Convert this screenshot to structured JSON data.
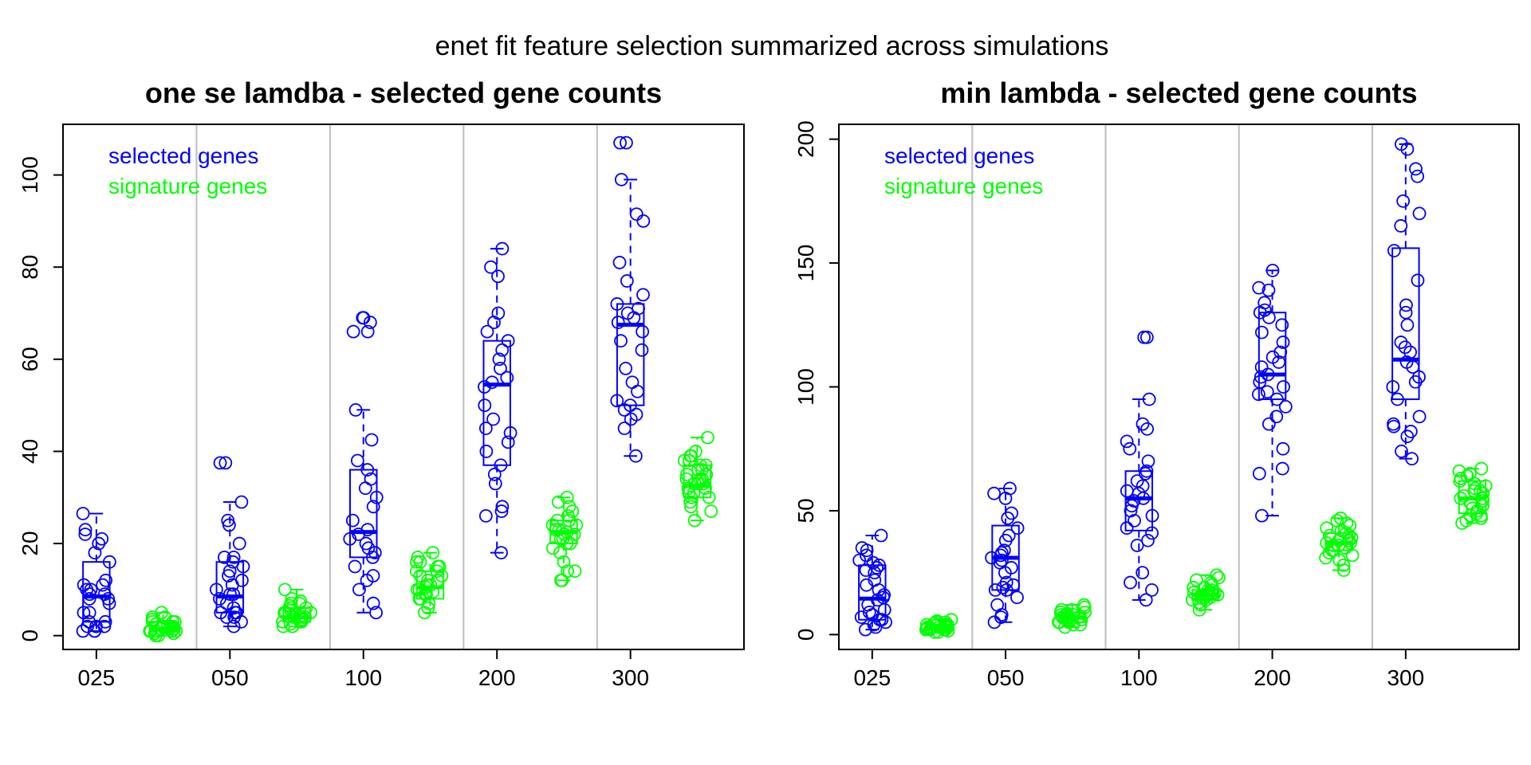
{
  "figure_title": "enet fit feature selection summarized across simulations",
  "colors": {
    "selected": "#0000ff",
    "signature": "#00ff00",
    "separator": "#bebebe",
    "axis": "#000000"
  },
  "chart_data": [
    {
      "type": "box",
      "title": "one se lamdba - selected gene counts",
      "xlabel": "",
      "ylabel": "",
      "categories": [
        "025",
        "050",
        "100",
        "200",
        "300"
      ],
      "ylim": [
        -3,
        111
      ],
      "yticks": [
        0,
        20,
        40,
        60,
        80,
        100
      ],
      "grid": false,
      "legend": {
        "position": "top-left",
        "entries": [
          "selected genes",
          "signature genes"
        ]
      },
      "series": [
        {
          "name": "selected genes",
          "color": "#0000ff",
          "boxes": [
            {
              "whisker_low": 1,
              "q1": 3,
              "median": 8.5,
              "q3": 16,
              "whisker_high": 26.5
            },
            {
              "whisker_low": 2,
              "q1": 5,
              "median": 8.5,
              "q3": 16,
              "whisker_high": 29
            },
            {
              "whisker_low": 5,
              "q1": 17,
              "median": 22.5,
              "q3": 36,
              "whisker_high": 49
            },
            {
              "whisker_low": 18,
              "q1": 37,
              "median": 54.5,
              "q3": 64,
              "whisker_high": 84
            },
            {
              "whisker_low": 39,
              "q1": 50,
              "median": 67.5,
              "q3": 72,
              "whisker_high": 99
            }
          ],
          "points": [
            [
              1,
              2,
              3,
              1,
              2,
              5,
              7,
              8,
              9,
              10,
              11,
              12,
              16,
              18,
              20,
              21,
              22,
              23,
              26.5,
              10,
              9,
              5,
              3,
              2,
              1,
              11,
              8
            ],
            [
              2,
              3,
              4,
              5,
              5,
              6,
              8,
              9,
              10,
              12,
              14,
              15,
              16,
              17,
              17,
              20,
              24,
              25,
              29,
              37.5,
              37.5,
              5,
              7,
              9,
              11,
              13,
              4
            ],
            [
              5,
              7,
              10,
              12,
              13,
              15,
              17,
              18,
              20,
              21,
              22,
              23,
              25,
              28,
              30,
              32,
              34,
              36,
              38,
              42.5,
              49,
              66,
              66,
              68,
              69,
              69,
              19
            ],
            [
              18,
              26,
              28,
              33,
              35,
              37,
              40,
              42,
              44,
              47,
              50,
              54,
              55,
              56,
              58,
              60,
              62,
              64,
              66,
              68,
              70,
              78,
              80,
              84,
              27,
              45
            ],
            [
              39,
              45,
              47,
              49,
              50,
              51,
              53,
              55,
              58,
              62,
              64,
              66,
              68,
              70,
              71,
              72,
              74,
              77,
              81,
              90,
              91.5,
              99,
              107,
              107,
              69,
              48
            ]
          ]
        },
        {
          "name": "signature genes",
          "color": "#00ff00",
          "boxes": [
            {
              "whisker_low": 0,
              "q1": 1,
              "median": 1.5,
              "q3": 3,
              "whisker_high": 5
            },
            {
              "whisker_low": 2,
              "q1": 3,
              "median": 4,
              "q3": 6,
              "whisker_high": 10
            },
            {
              "whisker_low": 5,
              "q1": 8,
              "median": 10.5,
              "q3": 14,
              "whisker_high": 18
            },
            {
              "whisker_low": 12,
              "q1": 20,
              "median": 22.5,
              "q3": 25,
              "whisker_high": 30
            },
            {
              "whisker_low": 25,
              "q1": 30,
              "median": 32.5,
              "q3": 37,
              "whisker_high": 43
            }
          ],
          "points": [
            [
              0,
              0,
              1,
              1,
              1,
              1,
              1.5,
              1.5,
              2,
              2,
              2,
              2,
              2.5,
              3,
              3,
              3,
              3.5,
              4,
              4,
              5,
              0.5,
              1,
              2,
              1.5,
              0.5
            ],
            [
              2,
              2,
              3,
              3,
              3,
              3.5,
              4,
              4,
              4,
              4.5,
              5,
              5,
              5.5,
              6,
              6,
              7,
              7,
              7.5,
              8,
              10,
              3,
              4,
              5,
              2.5,
              6.5
            ],
            [
              5,
              6,
              7,
              8,
              8,
              9,
              9,
              10,
              10,
              10.5,
              11,
              11,
              12,
              12,
              13,
              14,
              14,
              15,
              15,
              16,
              16,
              17,
              18,
              9.5,
              13
            ],
            [
              12,
              12,
              14,
              14,
              16,
              18,
              19,
              20,
              20,
              21,
              21,
              22,
              22,
              23,
              23,
              24,
              24,
              25,
              25,
              26,
              27,
              28,
              29,
              30,
              22.5
            ],
            [
              25,
              27,
              28,
              29,
              30,
              30,
              31,
              31,
              32,
              32,
              33,
              33,
              34,
              34,
              35,
              35,
              36,
              36,
              37,
              37,
              38,
              38,
              39,
              39,
              40,
              43,
              33,
              34
            ]
          ]
        }
      ]
    },
    {
      "type": "box",
      "title": "min lambda - selected gene counts",
      "xlabel": "",
      "ylabel": "",
      "categories": [
        "025",
        "050",
        "100",
        "200",
        "300"
      ],
      "ylim": [
        -6,
        206
      ],
      "yticks": [
        0,
        50,
        100,
        150,
        200
      ],
      "grid": false,
      "legend": {
        "position": "top-left",
        "entries": [
          "selected genes",
          "signature genes"
        ]
      },
      "series": [
        {
          "name": "selected genes",
          "color": "#0000ff",
          "boxes": [
            {
              "whisker_low": 2,
              "q1": 6,
              "median": 14.5,
              "q3": 28,
              "whisker_high": 40
            },
            {
              "whisker_low": 5,
              "q1": 18,
              "median": 31,
              "q3": 44,
              "whisker_high": 59
            },
            {
              "whisker_low": 14,
              "q1": 42,
              "median": 55,
              "q3": 66,
              "whisker_high": 95
            },
            {
              "whisker_low": 48,
              "q1": 95,
              "median": 105,
              "q3": 130,
              "whisker_high": 147
            },
            {
              "whisker_low": 71,
              "q1": 95,
              "median": 111,
              "q3": 156,
              "whisker_high": 198
            }
          ],
          "points": [
            [
              2,
              3,
              4,
              5,
              6,
              6,
              7,
              8,
              10,
              12,
              14,
              15,
              16,
              18,
              20,
              22,
              25,
              26,
              27,
              28,
              29,
              30,
              32,
              34,
              35,
              40,
              9
            ],
            [
              5,
              7,
              8,
              12,
              15,
              18,
              18,
              20,
              21,
              25,
              27,
              29,
              30,
              31,
              32,
              34,
              38,
              40,
              43,
              47,
              49,
              55,
              57,
              59,
              33,
              19
            ],
            [
              14,
              18,
              21,
              25,
              36,
              38,
              41,
              43,
              46,
              48,
              50,
              52,
              54,
              55,
              57,
              58,
              60,
              62,
              65,
              66,
              70,
              75,
              78,
              83,
              85,
              95,
              120,
              120
            ],
            [
              48,
              65,
              67,
              75,
              85,
              88,
              92,
              95,
              97,
              98,
              100,
              102,
              104,
              105,
              108,
              110,
              112,
              114,
              118,
              122,
              125,
              128,
              130,
              131,
              134,
              139,
              140,
              147
            ],
            [
              71,
              74,
              80,
              82,
              84,
              85,
              88,
              95,
              100,
              102,
              104,
              108,
              110,
              114,
              116,
              118,
              125,
              130,
              133,
              143,
              155,
              165,
              170,
              175,
              185,
              188,
              196,
              198
            ]
          ]
        },
        {
          "name": "signature genes",
          "color": "#00ff00",
          "boxes": [
            {
              "whisker_low": 1,
              "q1": 2,
              "median": 3,
              "q3": 4,
              "whisker_high": 6
            },
            {
              "whisker_low": 3,
              "q1": 5,
              "median": 7,
              "q3": 9,
              "whisker_high": 12
            },
            {
              "whisker_low": 10,
              "q1": 14,
              "median": 16,
              "q3": 18,
              "whisker_high": 24
            },
            {
              "whisker_low": 26,
              "q1": 34,
              "median": 37,
              "q3": 41,
              "whisker_high": 47
            },
            {
              "whisker_low": 45,
              "q1": 49,
              "median": 55,
              "q3": 62,
              "whisker_high": 67
            }
          ],
          "points": [
            [
              1,
              1.5,
              2,
              2,
              2,
              2.5,
              3,
              3,
              3,
              3,
              3.5,
              4,
              4,
              4,
              4.5,
              5,
              5,
              5.5,
              6,
              2,
              3,
              1,
              4,
              2.5
            ],
            [
              3,
              4,
              4,
              5,
              5,
              6,
              6,
              6,
              7,
              7,
              7,
              8,
              8,
              8,
              9,
              9,
              10,
              10,
              11,
              12,
              5,
              7,
              6.5,
              8.5
            ],
            [
              10,
              12,
              13,
              14,
              14,
              15,
              15,
              15,
              16,
              16,
              16,
              17,
              17,
              17,
              18,
              18,
              19,
              19,
              20,
              21,
              22,
              23,
              24,
              16.5
            ],
            [
              26,
              28,
              30,
              31,
              32,
              33,
              34,
              34,
              35,
              36,
              36,
              37,
              37,
              38,
              39,
              40,
              40,
              41,
              42,
              43,
              44,
              45,
              46,
              47,
              38
            ],
            [
              45,
              46,
              47,
              48,
              48,
              49,
              50,
              51,
              52,
              53,
              54,
              55,
              55,
              56,
              57,
              58,
              59,
              60,
              61,
              62,
              63,
              64,
              65,
              66,
              67,
              53,
              58
            ]
          ]
        }
      ]
    }
  ]
}
